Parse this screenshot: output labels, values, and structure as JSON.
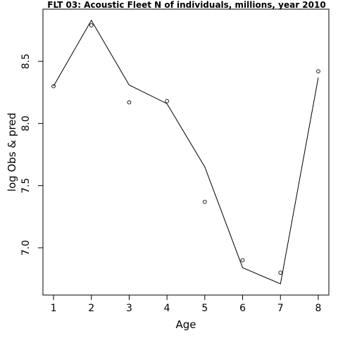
{
  "chart_data": {
    "type": "line",
    "title": "FLT 03: Acoustic Fleet  N of individuals, millions, year 2010",
    "xlabel": "Age",
    "ylabel": "log Obs & pred",
    "x": [
      1,
      2,
      3,
      4,
      5,
      6,
      7,
      8
    ],
    "x_ticks": [
      "1",
      "2",
      "3",
      "4",
      "5",
      "6",
      "7",
      "8"
    ],
    "y_ticks": [
      "7.0",
      "7.5",
      "8.0",
      "8.5"
    ],
    "y_tick_values": [
      7.0,
      7.5,
      8.0,
      8.5
    ],
    "xlim": [
      0.72,
      8.28
    ],
    "ylim": [
      6.62,
      8.92
    ],
    "grid": false,
    "series": [
      {
        "kind": "points",
        "values": [
          8.3,
          8.79,
          8.17,
          8.18,
          7.37,
          6.9,
          6.8,
          8.42
        ]
      },
      {
        "kind": "line",
        "values": [
          8.3,
          8.83,
          8.31,
          8.16,
          7.65,
          6.84,
          6.71,
          8.37
        ]
      }
    ]
  }
}
